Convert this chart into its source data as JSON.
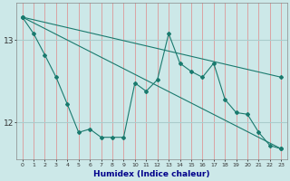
{
  "xlabel": "Humidex (Indice chaleur)",
  "background_color": "#cce8e8",
  "vgrid_color": "#e08888",
  "hgrid_color": "#aacccc",
  "line_color": "#1a7a6e",
  "x_values": [
    0,
    1,
    2,
    3,
    4,
    5,
    6,
    7,
    8,
    9,
    10,
    11,
    12,
    13,
    14,
    15,
    16,
    17,
    18,
    19,
    20,
    21,
    22,
    23
  ],
  "line1": [
    13.28,
    13.08,
    12.82,
    12.55,
    12.22,
    11.88,
    11.92,
    11.82,
    11.82,
    11.82,
    12.48,
    12.38,
    12.52,
    13.08,
    12.72,
    12.62,
    12.55,
    12.72,
    12.28,
    12.12,
    12.1,
    11.88,
    11.72,
    11.68
  ],
  "trend1_x": [
    0,
    23
  ],
  "trend1_y": [
    13.28,
    12.55
  ],
  "trend2_x": [
    0,
    23
  ],
  "trend2_y": [
    13.28,
    11.68
  ],
  "ylim": [
    11.55,
    13.45
  ],
  "yticks": [
    12,
    13
  ],
  "ytick_labels": [
    "12",
    "13"
  ],
  "xlim": [
    -0.5,
    23.5
  ],
  "xticks": [
    0,
    1,
    2,
    3,
    4,
    5,
    6,
    7,
    8,
    9,
    10,
    11,
    12,
    13,
    14,
    15,
    16,
    17,
    18,
    19,
    20,
    21,
    22,
    23
  ],
  "figsize": [
    3.2,
    2.0
  ],
  "dpi": 100
}
